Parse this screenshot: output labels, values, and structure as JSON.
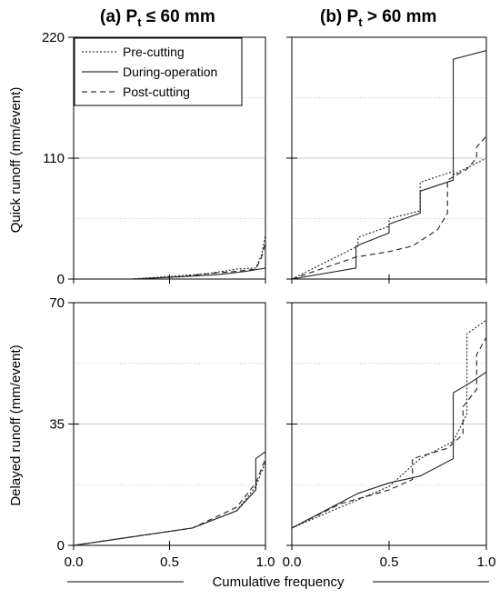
{
  "chart_data": [
    {
      "panel": "a-top",
      "type": "line",
      "title": "(a) P",
      "title_sub": "t",
      "title_rest": " ≤ 60 mm",
      "xlabel": "",
      "ylabel": "Quick runoff  (mm/event)",
      "xlim": [
        0,
        1
      ],
      "ylim": [
        0,
        220
      ],
      "yticks": [
        "220",
        "110",
        "0"
      ],
      "xticks": [],
      "grid": "dotted horizontal",
      "legend": {
        "position": "top-left",
        "entries": [
          "Pre-cutting",
          "During-operation",
          "Post-cutting"
        ]
      },
      "series": [
        {
          "name": "Pre-cutting",
          "style": "dotted",
          "x": [
            0.3,
            0.55,
            0.7,
            0.85,
            0.95,
            0.98,
            1.0
          ],
          "y": [
            0,
            3,
            5,
            9,
            10,
            22,
            40
          ]
        },
        {
          "name": "During-operation",
          "style": "solid",
          "x": [
            0.3,
            0.55,
            0.75,
            0.9,
            1.0
          ],
          "y": [
            0,
            2,
            4,
            7,
            10
          ]
        },
        {
          "name": "Post-cutting",
          "style": "dashed",
          "x": [
            0.3,
            0.55,
            0.7,
            0.85,
            0.95,
            0.98,
            1.0
          ],
          "y": [
            0,
            2,
            5,
            7,
            9,
            20,
            33
          ]
        }
      ]
    },
    {
      "panel": "b-top",
      "type": "line",
      "title": "(b) P",
      "title_sub": "t",
      "title_rest": " > 60 mm",
      "xlabel": "",
      "ylabel": "",
      "xlim": [
        0,
        1
      ],
      "ylim": [
        0,
        220
      ],
      "yticks": [],
      "xticks": [],
      "grid": "dotted horizontal",
      "series": [
        {
          "name": "Pre-cutting",
          "style": "dotted",
          "x": [
            0.0,
            0.34,
            0.34,
            0.5,
            0.5,
            0.66,
            0.66,
            0.83,
            0.83,
            1.0
          ],
          "y": [
            0,
            30,
            38,
            48,
            55,
            62,
            88,
            98,
            95,
            110
          ]
        },
        {
          "name": "During-operation",
          "style": "solid",
          "x": [
            0.0,
            0.33,
            0.33,
            0.5,
            0.5,
            0.66,
            0.66,
            0.83,
            0.83,
            1.0
          ],
          "y": [
            0,
            10,
            30,
            42,
            50,
            60,
            80,
            90,
            200,
            208
          ]
        },
        {
          "name": "Post-cutting",
          "style": "dashed",
          "x": [
            0.0,
            0.33,
            0.5,
            0.62,
            0.75,
            0.8,
            0.8,
            0.9,
            0.95,
            0.95,
            1.0
          ],
          "y": [
            0,
            20,
            25,
            30,
            45,
            60,
            90,
            100,
            110,
            120,
            130
          ]
        }
      ]
    },
    {
      "panel": "a-bottom",
      "type": "line",
      "title": "",
      "xlabel": "",
      "ylabel": "Delayed runoff  (mm/event)",
      "xlim": [
        0,
        1
      ],
      "ylim": [
        0,
        70
      ],
      "yticks": [
        "70",
        "35",
        "0"
      ],
      "xticks": [
        "0.0",
        "0.5",
        "1.0"
      ],
      "grid": "dotted horizontal",
      "series": [
        {
          "name": "Pre-cutting",
          "style": "dotted",
          "x": [
            0.0,
            0.62,
            0.85,
            0.95,
            1.0
          ],
          "y": [
            0,
            5,
            10,
            17,
            24
          ]
        },
        {
          "name": "During-operation",
          "style": "solid",
          "x": [
            0.0,
            0.62,
            0.85,
            0.95,
            0.95,
            1.0,
            1.0
          ],
          "y": [
            0,
            5,
            10,
            16,
            25,
            27,
            30
          ]
        },
        {
          "name": "Post-cutting",
          "style": "dashed",
          "x": [
            0.0,
            0.62,
            0.85,
            0.95,
            1.0
          ],
          "y": [
            0,
            5,
            11,
            18,
            25
          ]
        }
      ]
    },
    {
      "panel": "b-bottom",
      "type": "line",
      "title": "",
      "xlabel": "Cumulative frequency",
      "ylabel": "",
      "xlim": [
        0,
        1
      ],
      "ylim": [
        0,
        70
      ],
      "yticks": [],
      "xticks": [
        "0.0",
        "0.5",
        "1.0"
      ],
      "grid": "dotted horizontal",
      "series": [
        {
          "name": "Pre-cutting",
          "style": "dotted",
          "x": [
            0.0,
            0.25,
            0.5,
            0.66,
            0.83,
            0.9,
            0.9,
            1.0
          ],
          "y": [
            5,
            11,
            17,
            25,
            30,
            38,
            61,
            65
          ]
        },
        {
          "name": "During-operation",
          "style": "solid",
          "x": [
            0.0,
            0.34,
            0.5,
            0.66,
            0.83,
            0.83,
            0.92,
            1.0
          ],
          "y": [
            5,
            15,
            18,
            20,
            25,
            44,
            47,
            50
          ]
        },
        {
          "name": "Post-cutting",
          "style": "dashed",
          "x": [
            0.0,
            0.25,
            0.5,
            0.62,
            0.62,
            0.8,
            0.88,
            0.88,
            0.95,
            0.95,
            1.0
          ],
          "y": [
            5,
            12,
            16,
            19,
            25,
            28,
            32,
            40,
            45,
            55,
            60
          ]
        }
      ]
    }
  ]
}
